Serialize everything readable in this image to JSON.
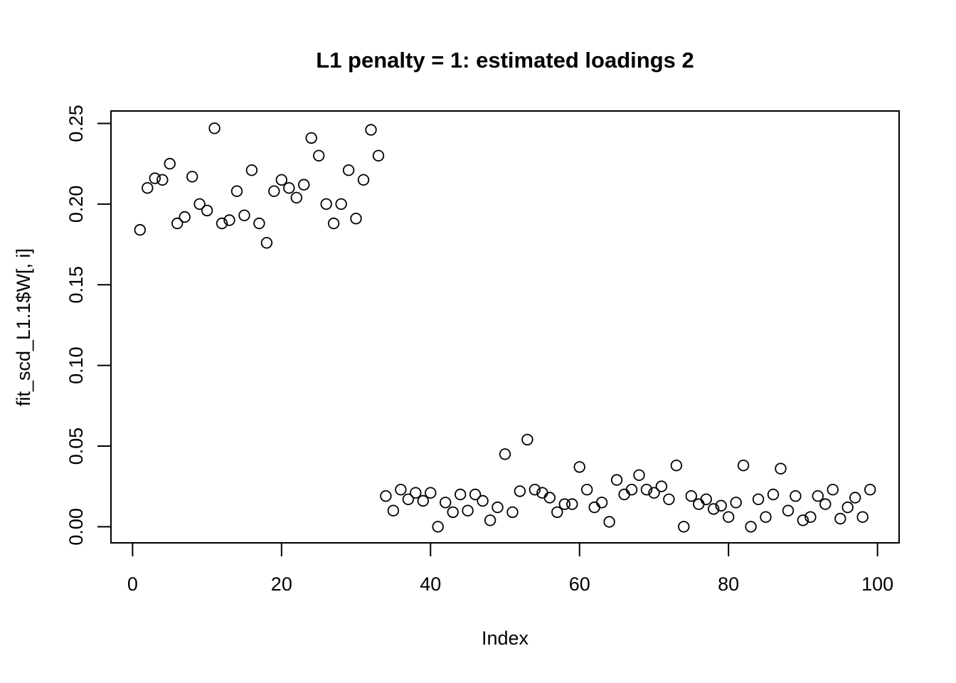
{
  "chart_data": {
    "type": "scatter",
    "title": "L1 penalty = 1: estimated loadings 2",
    "xlabel": "Index",
    "ylabel": "fit_scd_L1.1$W[, i]",
    "xlim": [
      -2.9,
      102.9
    ],
    "ylim": [
      -0.01,
      0.2577
    ],
    "x_ticks": [
      0,
      20,
      40,
      60,
      80,
      100
    ],
    "x_tick_labels": [
      "0",
      "20",
      "40",
      "60",
      "80",
      "100"
    ],
    "y_ticks": [
      0,
      0.05,
      0.1,
      0.15,
      0.2,
      0.25
    ],
    "y_tick_labels": [
      "0.00",
      "0.05",
      "0.10",
      "0.15",
      "0.20",
      "0.25"
    ],
    "grid": false,
    "marker": "open-circle",
    "marker_color": "#000000",
    "background": "#ffffff",
    "n_points": 99,
    "points": [
      [
        1,
        0.184
      ],
      [
        2,
        0.21
      ],
      [
        3,
        0.216
      ],
      [
        4,
        0.215
      ],
      [
        5,
        0.225
      ],
      [
        6,
        0.188
      ],
      [
        7,
        0.192
      ],
      [
        8,
        0.217
      ],
      [
        9,
        0.2
      ],
      [
        10,
        0.196
      ],
      [
        11,
        0.247
      ],
      [
        12,
        0.188
      ],
      [
        13,
        0.19
      ],
      [
        14,
        0.208
      ],
      [
        15,
        0.193
      ],
      [
        16,
        0.221
      ],
      [
        17,
        0.188
      ],
      [
        18,
        0.176
      ],
      [
        19,
        0.208
      ],
      [
        20,
        0.215
      ],
      [
        21,
        0.21
      ],
      [
        22,
        0.204
      ],
      [
        23,
        0.212
      ],
      [
        24,
        0.241
      ],
      [
        25,
        0.23
      ],
      [
        26,
        0.2
      ],
      [
        27,
        0.188
      ],
      [
        28,
        0.2
      ],
      [
        29,
        0.221
      ],
      [
        30,
        0.191
      ],
      [
        31,
        0.215
      ],
      [
        32,
        0.246
      ],
      [
        33,
        0.23
      ],
      [
        34,
        0.019
      ],
      [
        35,
        0.01
      ],
      [
        36,
        0.023
      ],
      [
        37,
        0.017
      ],
      [
        38,
        0.021
      ],
      [
        39,
        0.016
      ],
      [
        40,
        0.021
      ],
      [
        41,
        0.0
      ],
      [
        42,
        0.015
      ],
      [
        43,
        0.009
      ],
      [
        44,
        0.02
      ],
      [
        45,
        0.01
      ],
      [
        46,
        0.02
      ],
      [
        47,
        0.016
      ],
      [
        48,
        0.004
      ],
      [
        49,
        0.012
      ],
      [
        50,
        0.045
      ],
      [
        51,
        0.009
      ],
      [
        52,
        0.022
      ],
      [
        53,
        0.054
      ],
      [
        54,
        0.023
      ],
      [
        55,
        0.021
      ],
      [
        56,
        0.018
      ],
      [
        57,
        0.009
      ],
      [
        58,
        0.014
      ],
      [
        59,
        0.014
      ],
      [
        60,
        0.037
      ],
      [
        61,
        0.023
      ],
      [
        62,
        0.012
      ],
      [
        63,
        0.015
      ],
      [
        64,
        0.003
      ],
      [
        65,
        0.029
      ],
      [
        66,
        0.02
      ],
      [
        67,
        0.023
      ],
      [
        68,
        0.032
      ],
      [
        69,
        0.023
      ],
      [
        70,
        0.021
      ],
      [
        71,
        0.025
      ],
      [
        72,
        0.017
      ],
      [
        73,
        0.038
      ],
      [
        74,
        0.0
      ],
      [
        75,
        0.019
      ],
      [
        76,
        0.014
      ],
      [
        77,
        0.017
      ],
      [
        78,
        0.011
      ],
      [
        79,
        0.013
      ],
      [
        80,
        0.006
      ],
      [
        81,
        0.015
      ],
      [
        82,
        0.038
      ],
      [
        83,
        0.0
      ],
      [
        84,
        0.017
      ],
      [
        85,
        0.006
      ],
      [
        86,
        0.02
      ],
      [
        87,
        0.036
      ],
      [
        88,
        0.01
      ],
      [
        89,
        0.019
      ],
      [
        90,
        0.004
      ],
      [
        91,
        0.006
      ],
      [
        92,
        0.019
      ],
      [
        93,
        0.014
      ],
      [
        94,
        0.023
      ],
      [
        95,
        0.005
      ],
      [
        96,
        0.012
      ],
      [
        97,
        0.018
      ],
      [
        98,
        0.006
      ],
      [
        99,
        0.023
      ]
    ]
  }
}
